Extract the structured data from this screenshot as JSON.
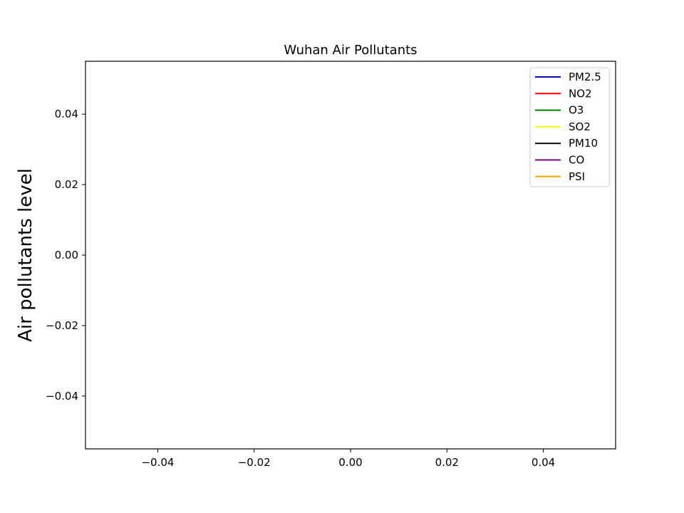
{
  "chart_data": {
    "type": "line",
    "title": "Wuhan Air Pollutants",
    "xlabel": "",
    "ylabel": "Air pollutants level",
    "xlim": [
      -0.055,
      0.055
    ],
    "ylim": [
      -0.055,
      0.055
    ],
    "x_ticks": [
      -0.04,
      -0.02,
      0.0,
      0.02,
      0.04
    ],
    "x_tick_labels": [
      "−0.04",
      "−0.02",
      "0.00",
      "0.02",
      "0.04"
    ],
    "y_ticks": [
      0.04,
      0.02,
      0.0,
      -0.02,
      -0.04
    ],
    "y_tick_labels": [
      "0.04",
      "0.02",
      "0.00",
      "−0.02",
      "−0.04"
    ],
    "grid": false,
    "legend_position": "top-right",
    "series": [
      {
        "name": "PM2.5",
        "color": "#0000ff",
        "x": [],
        "values": []
      },
      {
        "name": "NO2",
        "color": "#ff0000",
        "x": [],
        "values": []
      },
      {
        "name": "O3",
        "color": "#008000",
        "x": [],
        "values": []
      },
      {
        "name": "SO2",
        "color": "#ffff00",
        "x": [],
        "values": []
      },
      {
        "name": "PM10",
        "color": "#000000",
        "x": [],
        "values": []
      },
      {
        "name": "CO",
        "color": "#800080",
        "x": [],
        "values": []
      },
      {
        "name": "PSI",
        "color": "#ffa500",
        "x": [],
        "values": []
      }
    ]
  }
}
